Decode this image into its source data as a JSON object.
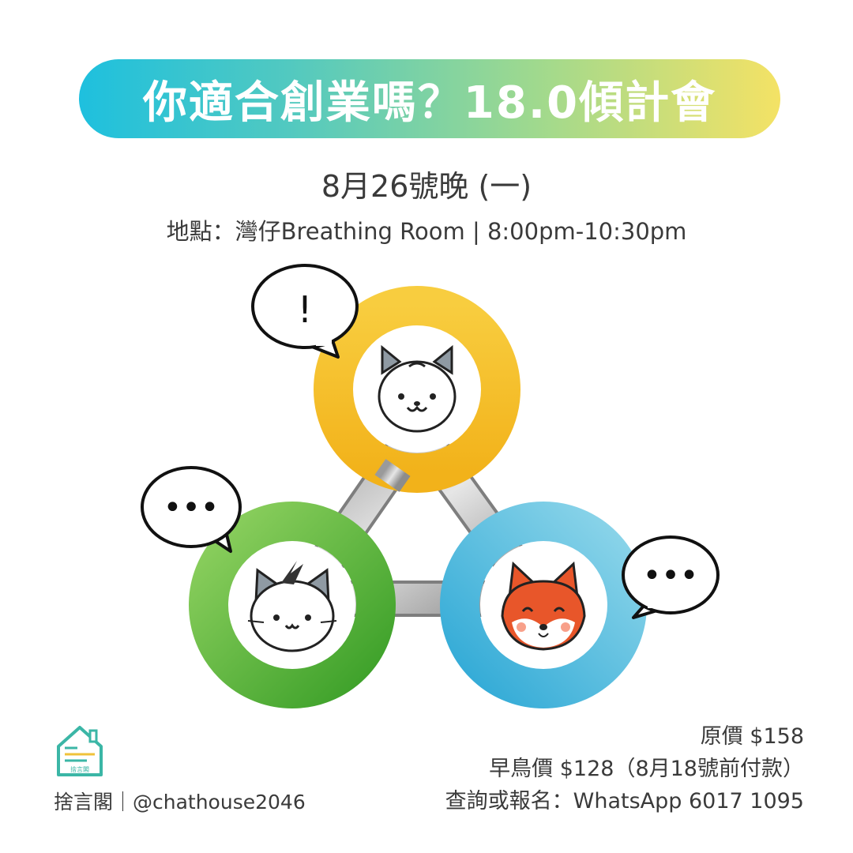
{
  "header": {
    "title": "你適合創業嗎？18.0傾計會"
  },
  "event": {
    "date": "8月26號晚 (一)",
    "venue": "地點：灣仔Breathing Room | 8:00pm-10:30pm"
  },
  "illustration": {
    "bubble_top": "!",
    "bubble_left": "•••",
    "bubble_right": "•••",
    "ring_colors": {
      "yellow": "#f5bd1f",
      "green": "#45ad2e",
      "blue": "#3fb5dd"
    },
    "characters": [
      "dog-icon",
      "cat-icon",
      "fox-icon"
    ]
  },
  "footer": {
    "brand": "捨言閣｜@chathouse2046",
    "logo_text": "捨言閣",
    "price_original": "原價 $158",
    "price_early": "早鳥價 $128（8月18號前付款）",
    "contact": "查詢或報名：WhatsApp 6017 1095"
  }
}
